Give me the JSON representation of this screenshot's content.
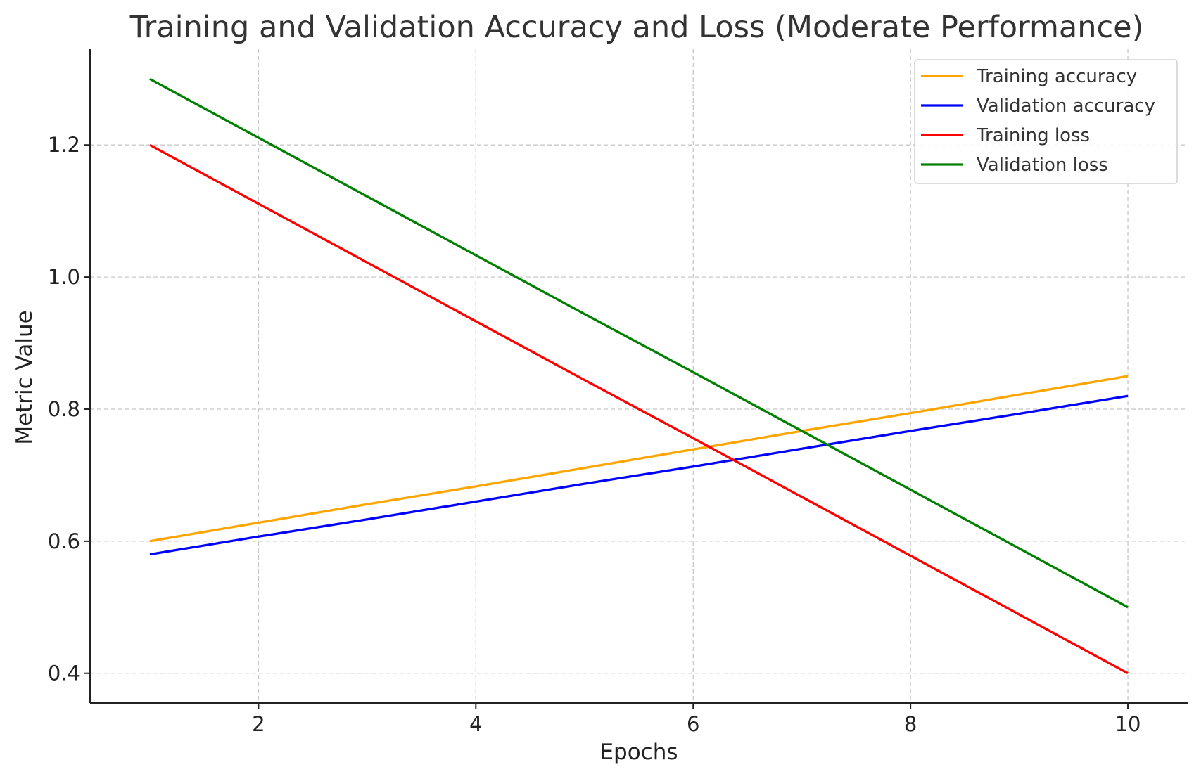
{
  "chart_data": {
    "type": "line",
    "title": "Training and Validation Accuracy and Loss (Moderate Performance)",
    "xlabel": "Epochs",
    "ylabel": "Metric Value",
    "x": [
      1,
      2,
      3,
      4,
      5,
      6,
      7,
      8,
      9,
      10
    ],
    "xlim": [
      0.45,
      10.55
    ],
    "ylim": [
      0.355,
      1.345
    ],
    "xticks": [
      2,
      4,
      6,
      8,
      10
    ],
    "xtick_labels": [
      "2",
      "4",
      "6",
      "8",
      "10"
    ],
    "yticks": [
      0.4,
      0.6,
      0.8,
      1.0,
      1.2
    ],
    "ytick_labels": [
      "0.4",
      "0.6",
      "0.8",
      "1.0",
      "1.2"
    ],
    "grid": true,
    "legend_position": "top-right",
    "series": [
      {
        "name": "Training accuracy",
        "color": "#ffa500",
        "values": [
          0.6,
          0.628,
          0.656,
          0.683,
          0.711,
          0.739,
          0.767,
          0.794,
          0.822,
          0.85
        ]
      },
      {
        "name": "Validation accuracy",
        "color": "#0000ff",
        "values": [
          0.58,
          0.607,
          0.633,
          0.66,
          0.687,
          0.713,
          0.74,
          0.767,
          0.793,
          0.82
        ]
      },
      {
        "name": "Training loss",
        "color": "#ff0000",
        "values": [
          1.2,
          1.111,
          1.022,
          0.933,
          0.844,
          0.756,
          0.667,
          0.578,
          0.489,
          0.4
        ]
      },
      {
        "name": "Validation loss",
        "color": "#008000",
        "values": [
          1.3,
          1.211,
          1.122,
          1.033,
          0.944,
          0.856,
          0.767,
          0.678,
          0.589,
          0.5
        ]
      }
    ]
  }
}
